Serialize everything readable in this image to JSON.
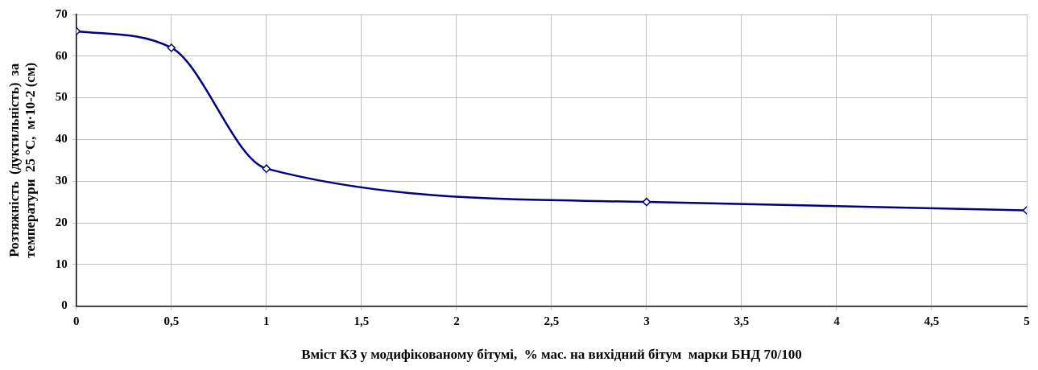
{
  "chart_data": {
    "type": "line",
    "xlabel": "Вміст КЗ у модифікованому бітумі,  % мас. на вихідний бітум  марки БНД 70/100",
    "ylabel": "Розтяжність  (дуктильність)  за\nтемператури  25 °С,  м·10-2 (см)",
    "x": [
      0,
      0.5,
      1,
      3,
      5
    ],
    "series": [
      {
        "color": "#000080",
        "values": [
          66,
          62,
          33,
          25,
          23
        ]
      }
    ],
    "xlim": [
      0,
      5
    ],
    "xticks": [
      0,
      {
        "value": 0.5,
        "label": "0,5"
      },
      1,
      {
        "value": 1.5,
        "label": "1,5"
      },
      2,
      {
        "value": 2.5,
        "label": "2,5"
      },
      3,
      {
        "value": 3.5,
        "label": "3,5"
      },
      4,
      {
        "value": 4.5,
        "label": "4,5"
      },
      5
    ],
    "ylim": [
      0,
      70
    ],
    "yticks": [
      0,
      10,
      20,
      30,
      40,
      50,
      60,
      70
    ],
    "grid": true,
    "legend": false,
    "marker": "diamond",
    "line_style": "solid"
  }
}
